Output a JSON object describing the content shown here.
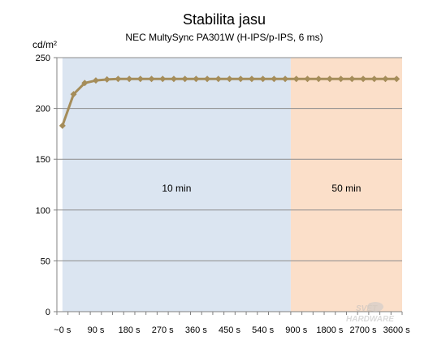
{
  "chart_data": {
    "type": "line",
    "title": "Stabilita jasu",
    "subtitle": "NEC MultySync PA301W (H-IPS/p-IPS, 6 ms)",
    "ylabel": "cd/m²",
    "xlabel": "",
    "ylim": [
      0,
      250
    ],
    "yticks": [
      0,
      50,
      100,
      150,
      200,
      250
    ],
    "grid": true,
    "legend": "none",
    "x_tick_labels": [
      "~0 s",
      "90 s",
      "180 s",
      "270 s",
      "360 s",
      "450 s",
      "540 s",
      "900 s",
      "1800 s",
      "2700 s",
      "3600 s"
    ],
    "x_tick_points": [
      0,
      3,
      6,
      9,
      12,
      15,
      18,
      21,
      24,
      27,
      30
    ],
    "regions": [
      {
        "label": "10 min",
        "from_point": 0,
        "to_point": 20.5,
        "color": "#dbe5f1"
      },
      {
        "label": "50 min",
        "from_point": 20.5,
        "to_point": 31.5,
        "color": "#fbdfc9"
      }
    ],
    "series": [
      {
        "color": "#a58d5a",
        "values": [
          183,
          214,
          225,
          227.5,
          228.5,
          229,
          229,
          229,
          229,
          229,
          229,
          229,
          229,
          229,
          229,
          229,
          229,
          229,
          229,
          229,
          229,
          229,
          229,
          229,
          229,
          229,
          229,
          229,
          229,
          229,
          229
        ]
      }
    ]
  },
  "watermark": {
    "line1": "SVĚT",
    "line2": "HARDWARE"
  }
}
